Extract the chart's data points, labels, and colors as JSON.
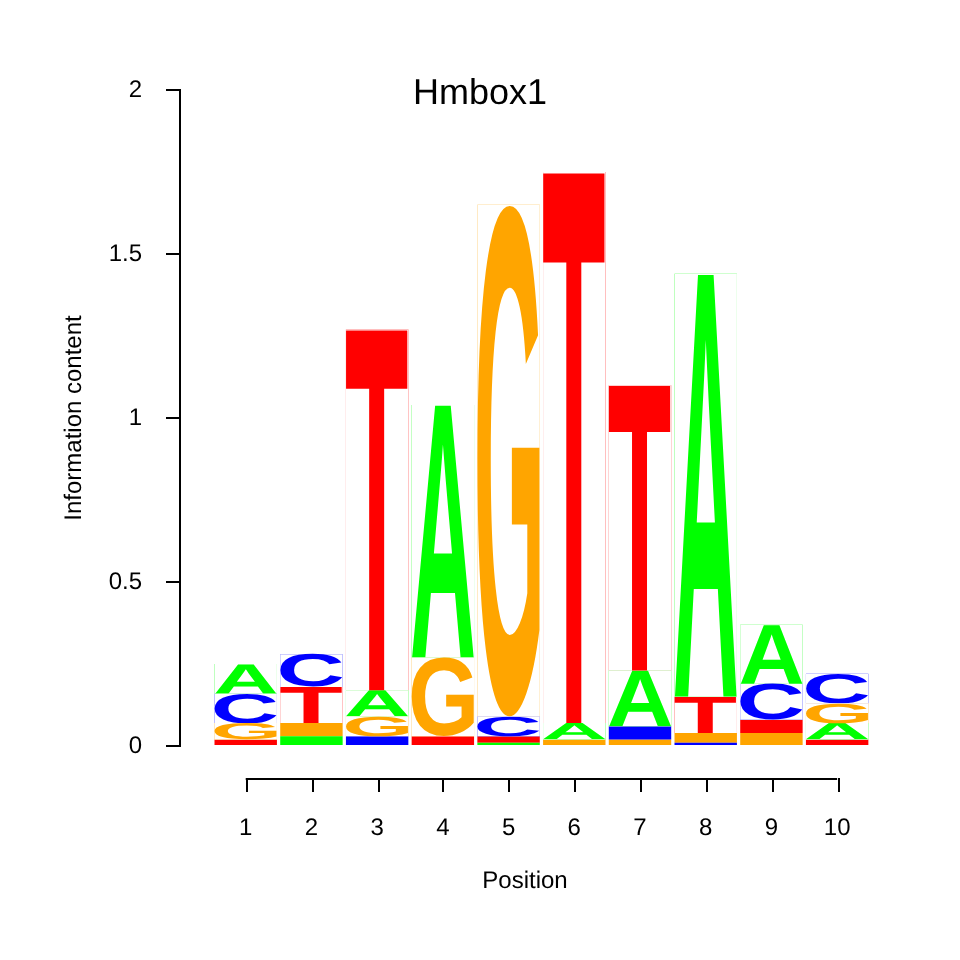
{
  "chart_data": {
    "type": "bar",
    "title": "Hmbox1",
    "xlabel": "Position",
    "ylabel": "Information content",
    "categories": [
      "1",
      "2",
      "3",
      "4",
      "5",
      "6",
      "7",
      "8",
      "9",
      "10"
    ],
    "series": [
      {
        "name": "A",
        "color": "#00ff00",
        "values": [
          0.09,
          0.03,
          0.08,
          0.77,
          0.01,
          0.05,
          0.17,
          1.29,
          0.18,
          0.05
        ],
        "base": [
          0.16,
          0,
          0.09,
          0.27,
          0,
          0.02,
          0.06,
          0.15,
          0.19,
          0.02
        ]
      },
      {
        "name": "C",
        "color": "#0000ff",
        "values": [
          0.09,
          0.1,
          0.03,
          null,
          0.06,
          null,
          0.04,
          0.01,
          0.11,
          0.09
        ],
        "base": [
          0.07,
          0.18,
          0,
          null,
          0.03,
          null,
          0.02,
          0,
          0.08,
          0.13
        ]
      },
      {
        "name": "G",
        "color": "#ffa500",
        "values": [
          0.05,
          0.04,
          0.06,
          0.24,
          1.56,
          0.02,
          0.02,
          0.03,
          0.04,
          0.06
        ],
        "base": [
          0.02,
          0.03,
          0.03,
          0.03,
          0.09,
          0,
          0,
          0.01,
          0,
          0.07
        ]
      },
      {
        "name": "T",
        "color": "#ff0000",
        "values": [
          0.02,
          0.11,
          1.1,
          0.03,
          0.02,
          1.68,
          0.87,
          0.11,
          0.04,
          0.02
        ],
        "base": [
          0,
          0.07,
          0.17,
          0,
          0.01,
          0.07,
          0.23,
          0.04,
          0.04,
          0
        ]
      }
    ],
    "ylim": [
      0,
      2
    ],
    "yticks": [
      0,
      0.5,
      1,
      1.5,
      2
    ]
  }
}
